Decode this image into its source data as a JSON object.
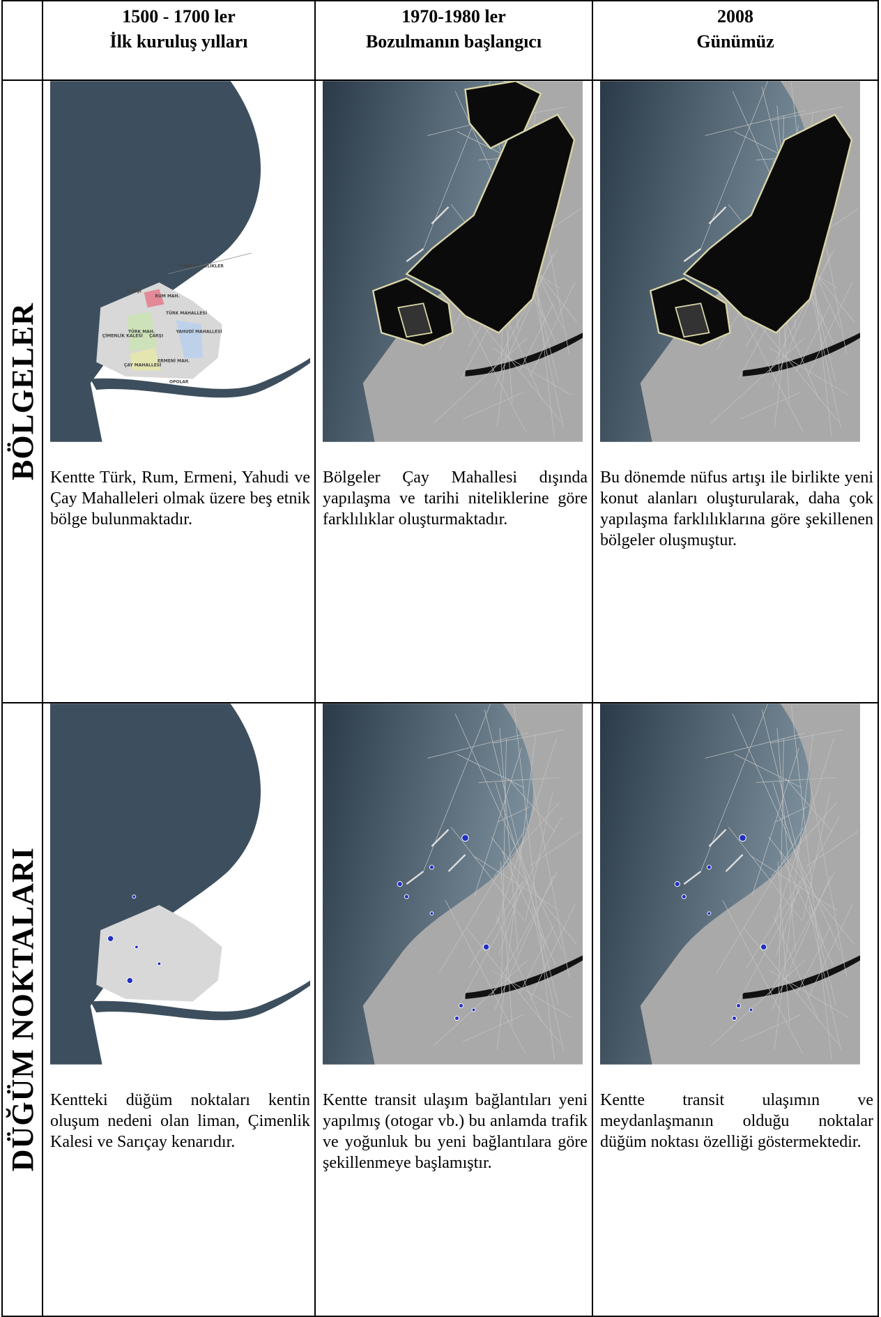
{
  "header": {
    "columns": [
      {
        "period": "1500 - 1700 ler",
        "title": "İlk kuruluş yılları"
      },
      {
        "period": "1970-1980 ler",
        "title": "Bozulmanın başlangıcı"
      },
      {
        "period": "2008",
        "title": "Günümüz"
      }
    ]
  },
  "rows": [
    {
      "label": "BÖLGELER",
      "cells": [
        "Kentte Türk, Rum, Ermeni, Yahudi ve Çay Mahalleleri olmak üzere beş etnik bölge bulunmaktadır.",
        "Bölgeler Çay Mahallesi dışında yapılaşma ve tarihi niteliklerine göre farklılıklar oluşturmaktadır.",
        "Bu dönemde nüfus artışı ile birlikte yeni konut alanları oluşturularak, daha çok yapılaşma farklılıklarına göre şekillenen bölgeler oluşmuştur."
      ]
    },
    {
      "label": "DÜĞÜM NOKTALARI",
      "cells": [
        "Kentteki düğüm noktaları kentin oluşum nedeni olan liman, Çimenlik Kalesi ve Sarıçay kenarıdır.",
        "Kentte transit ulaşım bağlantıları yeni yapılmış (otogar vb.) bu anlamda trafik ve yoğunluk bu yeni bağlantılara göre şekillenmeye başlamıştır.",
        "Kentte transit ulaşımın ve meydanlaşmanın olduğu noktalar düğüm noktası özelliği göstermektedir."
      ]
    }
  ],
  "map_labels": [
    "TİCARİ ATEŞELİKLER",
    "ÇARŞI",
    "RUM MAH.",
    "TÜRK MAHALLESİ",
    "YAHUDİ MAHALLESİ",
    "ÇİMENLİK KALESİ",
    "TÜRK MAH.",
    "ÇARŞI",
    "ÇAY MAHALLESİ",
    "ERMENİ MAH.",
    "OPOLAR"
  ]
}
